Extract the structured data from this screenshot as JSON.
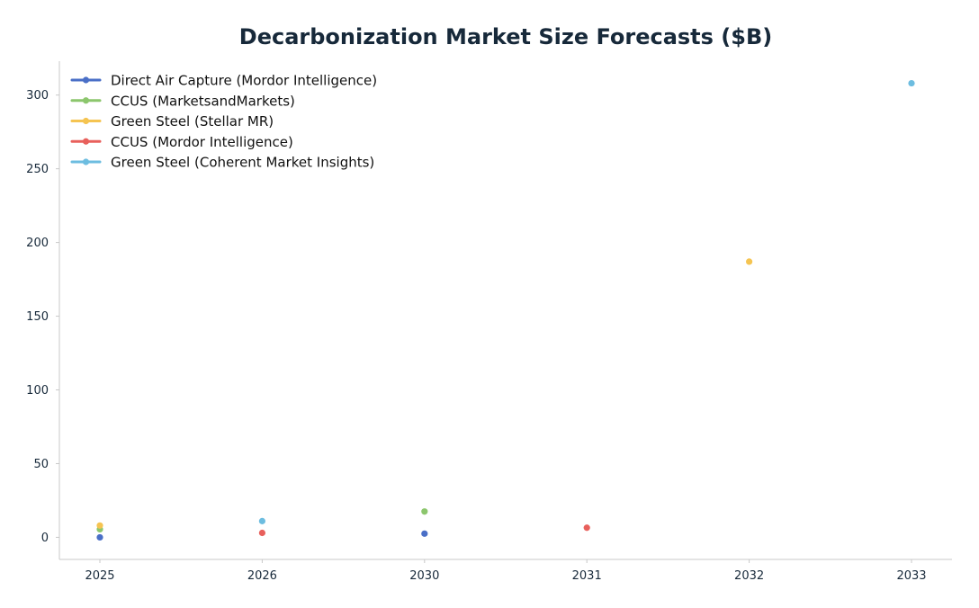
{
  "chart_data": {
    "type": "scatter",
    "title": "Decarbonization Market Size Forecasts ($B)",
    "xlabel": "",
    "ylabel": "",
    "x_categories": [
      "2025",
      "2026",
      "2030",
      "2031",
      "2032",
      "2033"
    ],
    "ylim": [
      -15,
      323
    ],
    "y_ticks": [
      0,
      50,
      100,
      150,
      200,
      250,
      300
    ],
    "grid": false,
    "legend_position": "top-left",
    "series": [
      {
        "name": "Direct Air Capture (Mordor Intelligence)",
        "color": "#4a6fc7",
        "points": [
          {
            "x": "2025",
            "y": 0.0
          },
          {
            "x": "2030",
            "y": 2.5
          }
        ]
      },
      {
        "name": "CCUS (MarketsandMarkets)",
        "color": "#8cc66d",
        "points": [
          {
            "x": "2025",
            "y": 5.5
          },
          {
            "x": "2030",
            "y": 17.5
          }
        ]
      },
      {
        "name": "Green Steel (Stellar MR)",
        "color": "#f5c451",
        "points": [
          {
            "x": "2025",
            "y": 8.0
          },
          {
            "x": "2032",
            "y": 187.0
          }
        ]
      },
      {
        "name": "CCUS (Mordor Intelligence)",
        "color": "#e8605c",
        "points": [
          {
            "x": "2026",
            "y": 3.0
          },
          {
            "x": "2031",
            "y": 6.5
          }
        ]
      },
      {
        "name": "Green Steel (Coherent Market Insights)",
        "color": "#6dbde0",
        "points": [
          {
            "x": "2026",
            "y": 11.0
          },
          {
            "x": "2033",
            "y": 308.0
          }
        ]
      }
    ]
  }
}
